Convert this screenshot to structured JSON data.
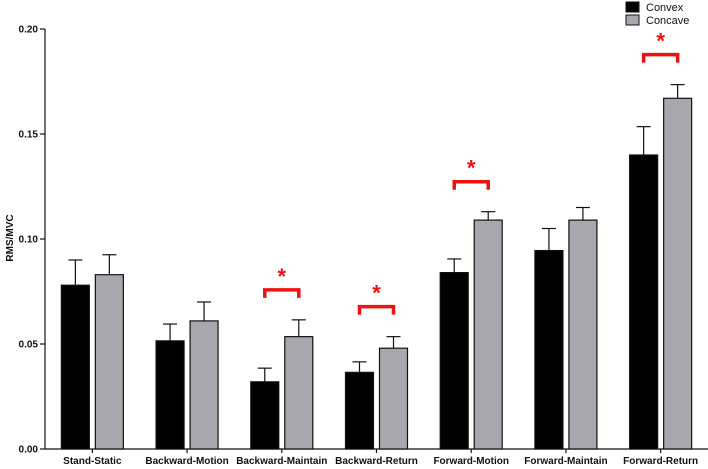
{
  "chart_data": {
    "type": "bar",
    "title": "",
    "xlabel": "",
    "ylabel": "RMS/MVC",
    "ylim": [
      0,
      0.2
    ],
    "yticks": [
      "0.00",
      "0.05",
      "0.10",
      "0.15",
      "0.20"
    ],
    "ytick_values": [
      0,
      0.05,
      0.1,
      0.15,
      0.2
    ],
    "categories": [
      "Stand-Static",
      "Backward-Motion",
      "Backward-Maintain",
      "Backward-Return",
      "Forward-Motion",
      "Forward-Maintain",
      "Forward-Return"
    ],
    "series": [
      {
        "name": "Convex",
        "color": "#000000",
        "values": [
          0.078,
          0.0515,
          0.032,
          0.0365,
          0.084,
          0.0945,
          0.14
        ],
        "errors": [
          0.012,
          0.008,
          0.0065,
          0.005,
          0.0065,
          0.0105,
          0.0135
        ]
      },
      {
        "name": "Concave",
        "color": "#a7a7ad",
        "values": [
          0.083,
          0.061,
          0.0535,
          0.048,
          0.109,
          0.109,
          0.167
        ],
        "errors": [
          0.0095,
          0.009,
          0.008,
          0.0055,
          0.004,
          0.006,
          0.0065
        ]
      }
    ],
    "significance": [
      {
        "category": "Backward-Maintain",
        "label": "*"
      },
      {
        "category": "Backward-Return",
        "label": "*"
      },
      {
        "category": "Forward-Motion",
        "label": "*"
      },
      {
        "category": "Forward-Return",
        "label": "*"
      }
    ],
    "significance_color": "#ee1111",
    "legend_position": "top-right",
    "grid": false
  }
}
